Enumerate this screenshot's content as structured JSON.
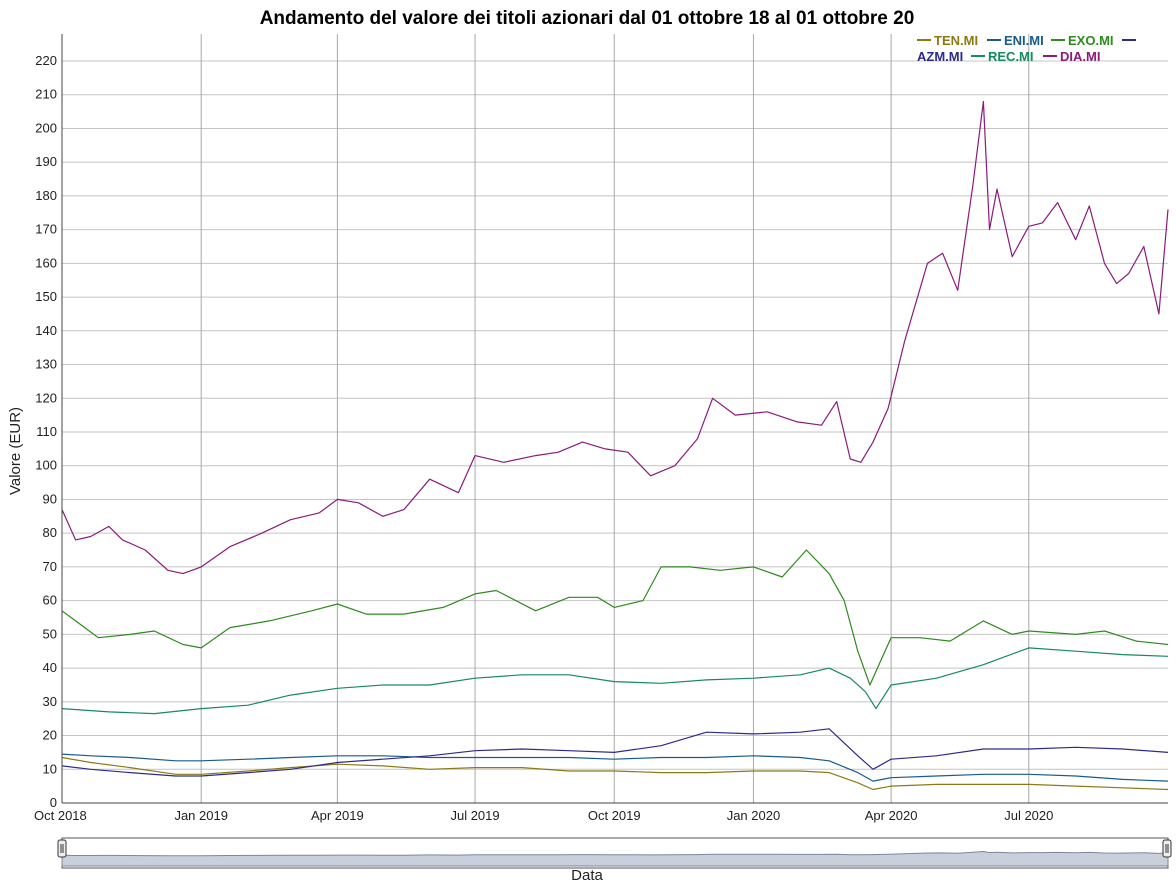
{
  "chart_data": {
    "type": "line",
    "title": "Andamento del valore dei titoli azionari dal 01 ottobre 18 al 01 ottobre 20",
    "xlabel": "Data",
    "ylabel": "Valore (EUR)",
    "ylim": [
      0,
      228
    ],
    "xlim": [
      "2018-10-01",
      "2020-10-01"
    ],
    "grid": true,
    "legend_position": "top-right",
    "x_ticks": [
      {
        "date": "2018-10-01",
        "label": "Oct 2018"
      },
      {
        "date": "2019-01-01",
        "label": "Jan 2019"
      },
      {
        "date": "2019-04-01",
        "label": "Apr 2019"
      },
      {
        "date": "2019-07-01",
        "label": "Jul 2019"
      },
      {
        "date": "2019-10-01",
        "label": "Oct 2019"
      },
      {
        "date": "2020-01-01",
        "label": "Jan 2020"
      },
      {
        "date": "2020-04-01",
        "label": "Apr 2020"
      },
      {
        "date": "2020-07-01",
        "label": "Jul 2020"
      }
    ],
    "y_ticks": [
      0,
      10,
      20,
      30,
      40,
      50,
      60,
      70,
      80,
      90,
      100,
      110,
      120,
      130,
      140,
      150,
      160,
      170,
      180,
      190,
      200,
      210,
      220
    ],
    "series": [
      {
        "name": "TEN.MI",
        "color": "#8B7A14",
        "x": [
          "2018-10-01",
          "2018-10-20",
          "2018-11-15",
          "2018-12-15",
          "2019-01-01",
          "2019-02-01",
          "2019-03-01",
          "2019-04-01",
          "2019-05-01",
          "2019-06-01",
          "2019-07-01",
          "2019-08-01",
          "2019-09-01",
          "2019-10-01",
          "2019-11-01",
          "2019-12-01",
          "2020-01-01",
          "2020-02-01",
          "2020-02-20",
          "2020-03-10",
          "2020-03-20",
          "2020-04-01",
          "2020-05-01",
          "2020-06-01",
          "2020-07-01",
          "2020-08-01",
          "2020-09-01",
          "2020-10-01"
        ],
        "y": [
          13.5,
          12,
          10.5,
          8.5,
          8.5,
          9.5,
          10.5,
          11.5,
          11,
          10,
          10.5,
          10.5,
          9.5,
          9.5,
          9,
          9,
          9.5,
          9.5,
          9,
          6,
          4,
          5,
          5.5,
          5.5,
          5.5,
          5,
          4.5,
          4
        ]
      },
      {
        "name": "ENI.MI",
        "color": "#1A5A8C",
        "x": [
          "2018-10-01",
          "2018-10-20",
          "2018-11-15",
          "2018-12-15",
          "2019-01-01",
          "2019-02-01",
          "2019-03-01",
          "2019-04-01",
          "2019-05-01",
          "2019-06-01",
          "2019-07-01",
          "2019-08-01",
          "2019-09-01",
          "2019-10-01",
          "2019-11-01",
          "2019-12-01",
          "2020-01-01",
          "2020-02-01",
          "2020-02-20",
          "2020-03-10",
          "2020-03-20",
          "2020-04-01",
          "2020-05-01",
          "2020-06-01",
          "2020-07-01",
          "2020-08-01",
          "2020-09-01",
          "2020-10-01"
        ],
        "y": [
          14.5,
          14,
          13.5,
          12.5,
          12.5,
          13,
          13.5,
          14,
          14,
          13.5,
          13.5,
          13.5,
          13.5,
          13,
          13.5,
          13.5,
          14,
          13.5,
          12.5,
          9,
          6.5,
          7.5,
          8,
          8.5,
          8.5,
          8,
          7,
          6.5
        ]
      },
      {
        "name": "EXO.MI",
        "color": "#2E8B1E",
        "x": [
          "2018-10-01",
          "2018-10-10",
          "2018-10-25",
          "2018-11-15",
          "2018-12-01",
          "2018-12-20",
          "2019-01-01",
          "2019-01-20",
          "2019-02-15",
          "2019-03-15",
          "2019-04-01",
          "2019-04-20",
          "2019-05-15",
          "2019-06-10",
          "2019-07-01",
          "2019-07-15",
          "2019-08-10",
          "2019-09-01",
          "2019-09-20",
          "2019-10-01",
          "2019-10-20",
          "2019-11-01",
          "2019-11-20",
          "2019-12-10",
          "2020-01-01",
          "2020-01-20",
          "2020-02-05",
          "2020-02-20",
          "2020-03-01",
          "2020-03-10",
          "2020-03-18",
          "2020-03-25",
          "2020-04-01",
          "2020-04-20",
          "2020-05-10",
          "2020-06-01",
          "2020-06-20",
          "2020-07-01",
          "2020-08-01",
          "2020-08-20",
          "2020-09-10",
          "2020-10-01"
        ],
        "y": [
          57,
          54,
          49,
          50,
          51,
          47,
          46,
          52,
          54,
          57,
          59,
          56,
          56,
          58,
          62,
          63,
          57,
          61,
          61,
          58,
          60,
          70,
          70,
          69,
          70,
          67,
          75,
          68,
          60,
          45,
          35,
          42,
          49,
          49,
          48,
          54,
          50,
          51,
          50,
          51,
          48,
          47
        ]
      },
      {
        "name": "AZM.MI",
        "color": "#2E2A8C",
        "x": [
          "2018-10-01",
          "2018-10-20",
          "2018-11-15",
          "2018-12-15",
          "2019-01-01",
          "2019-02-01",
          "2019-03-01",
          "2019-04-01",
          "2019-05-01",
          "2019-06-01",
          "2019-07-01",
          "2019-08-01",
          "2019-09-01",
          "2019-10-01",
          "2019-11-01",
          "2019-12-01",
          "2020-01-01",
          "2020-02-01",
          "2020-02-20",
          "2020-03-10",
          "2020-03-20",
          "2020-04-01",
          "2020-05-01",
          "2020-06-01",
          "2020-07-01",
          "2020-08-01",
          "2020-09-01",
          "2020-10-01"
        ],
        "y": [
          11,
          10,
          9,
          8,
          8,
          9,
          10,
          12,
          13,
          14,
          15.5,
          16,
          15.5,
          15,
          17,
          21,
          20.5,
          21,
          22,
          14,
          10,
          13,
          14,
          16,
          16,
          16.5,
          16,
          15
        ]
      },
      {
        "name": "REC.MI",
        "color": "#168A5C",
        "x": [
          "2018-10-01",
          "2018-11-01",
          "2018-12-01",
          "2019-01-01",
          "2019-02-01",
          "2019-03-01",
          "2019-04-01",
          "2019-05-01",
          "2019-06-01",
          "2019-07-01",
          "2019-08-01",
          "2019-09-01",
          "2019-10-01",
          "2019-11-01",
          "2019-12-01",
          "2020-01-01",
          "2020-02-01",
          "2020-02-20",
          "2020-03-05",
          "2020-03-15",
          "2020-03-22",
          "2020-04-01",
          "2020-05-01",
          "2020-06-01",
          "2020-07-01",
          "2020-08-01",
          "2020-09-01",
          "2020-10-01"
        ],
        "y": [
          28,
          27,
          26.5,
          28,
          29,
          32,
          34,
          35,
          35,
          37,
          38,
          38,
          36,
          35.5,
          36.5,
          37,
          38,
          40,
          37,
          33,
          28,
          35,
          37,
          41,
          46,
          45,
          44,
          43.5
        ]
      },
      {
        "name": "DIA.MI",
        "color": "#8A1A7C",
        "x": [
          "2018-10-01",
          "2018-10-10",
          "2018-10-20",
          "2018-11-01",
          "2018-11-10",
          "2018-11-25",
          "2018-12-10",
          "2018-12-20",
          "2019-01-01",
          "2019-01-20",
          "2019-02-10",
          "2019-03-01",
          "2019-03-20",
          "2019-04-01",
          "2019-04-15",
          "2019-05-01",
          "2019-05-15",
          "2019-06-01",
          "2019-06-20",
          "2019-07-01",
          "2019-07-20",
          "2019-08-10",
          "2019-08-25",
          "2019-09-10",
          "2019-09-25",
          "2019-10-10",
          "2019-10-25",
          "2019-11-10",
          "2019-11-25",
          "2019-12-05",
          "2019-12-20",
          "2020-01-10",
          "2020-01-30",
          "2020-02-15",
          "2020-02-25",
          "2020-03-05",
          "2020-03-12",
          "2020-03-20",
          "2020-03-30",
          "2020-04-10",
          "2020-04-25",
          "2020-05-05",
          "2020-05-15",
          "2020-05-25",
          "2020-06-01",
          "2020-06-05",
          "2020-06-10",
          "2020-06-20",
          "2020-07-01",
          "2020-07-10",
          "2020-07-20",
          "2020-08-01",
          "2020-08-10",
          "2020-08-20",
          "2020-08-28",
          "2020-09-05",
          "2020-09-15",
          "2020-09-25",
          "2020-10-01"
        ],
        "y": [
          87,
          78,
          79,
          82,
          78,
          75,
          69,
          68,
          70,
          76,
          80,
          84,
          86,
          90,
          89,
          85,
          87,
          96,
          92,
          103,
          101,
          103,
          104,
          107,
          105,
          104,
          97,
          100,
          108,
          120,
          115,
          116,
          113,
          112,
          119,
          102,
          101,
          107,
          117,
          137,
          160,
          163,
          152,
          183,
          208,
          170,
          182,
          162,
          171,
          172,
          178,
          167,
          177,
          160,
          154,
          157,
          165,
          145,
          176
        ]
      }
    ],
    "slider_label": ""
  }
}
